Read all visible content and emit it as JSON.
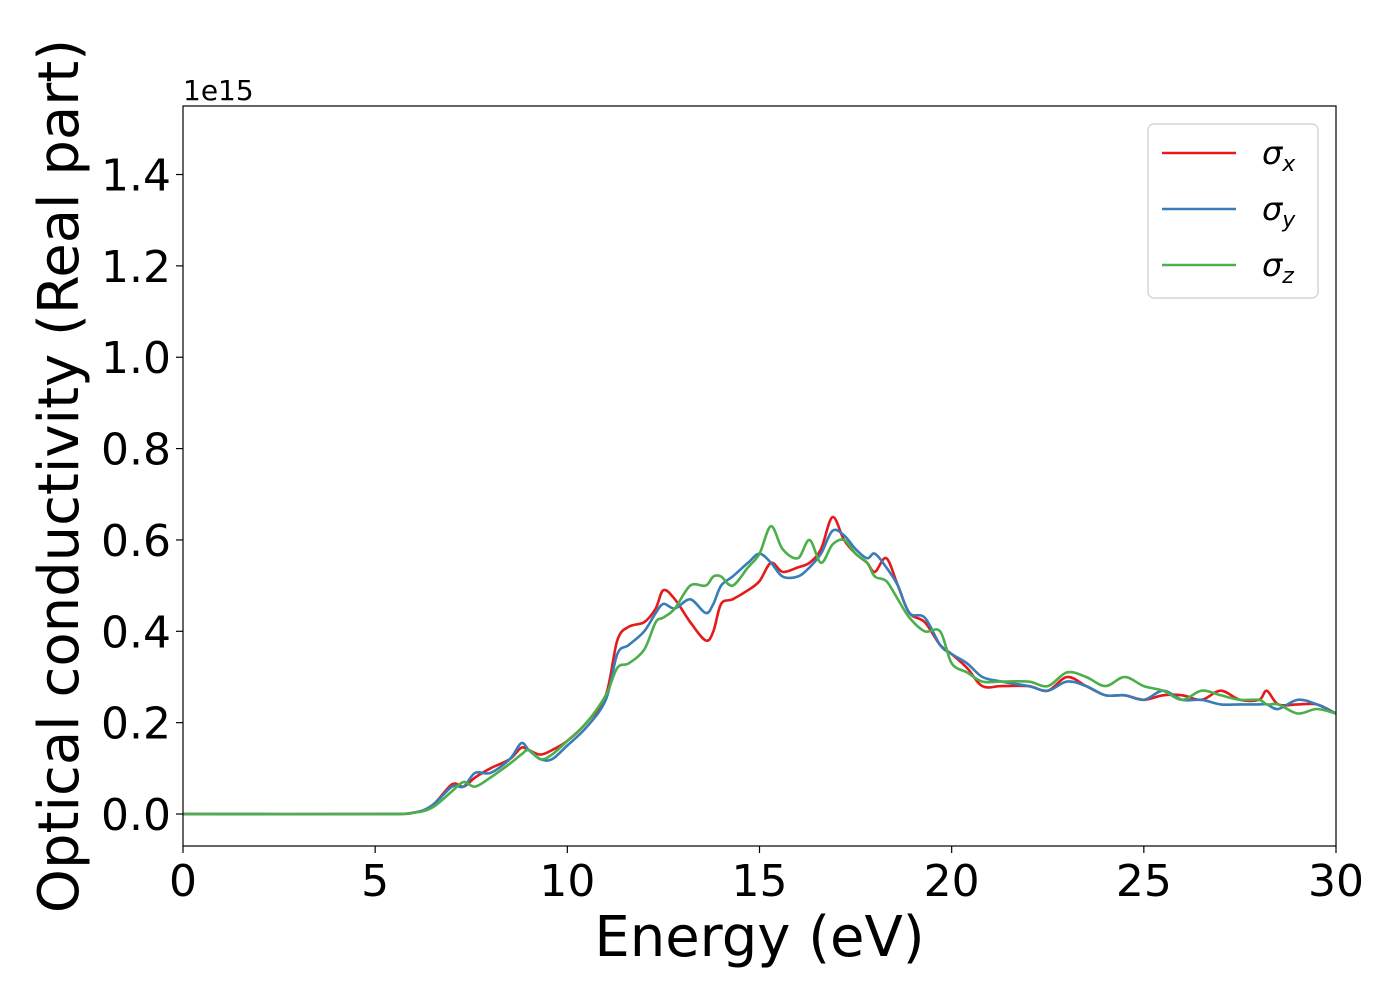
{
  "chart_data": {
    "type": "line",
    "title": "",
    "xlabel": "Energy (eV)",
    "ylabel": "Optical conductivity (Real part)",
    "y_offset_text": "1e15",
    "xlim": [
      0,
      30
    ],
    "ylim": [
      -0.07,
      1.55
    ],
    "xticks": [
      0,
      5,
      10,
      15,
      20,
      25,
      30
    ],
    "yticks": [
      0.0,
      0.2,
      0.4,
      0.6,
      0.8,
      1.0,
      1.2,
      1.4
    ],
    "grid": false,
    "legend_position": "top-right",
    "series": [
      {
        "name": "σx",
        "sym": "σ",
        "sub": "x",
        "color": "#e41a1c",
        "x": [
          0,
          5,
          6,
          6.5,
          7,
          7.3,
          7.6,
          8,
          8.5,
          8.8,
          9,
          9.3,
          9.6,
          10,
          10.5,
          11,
          11.3,
          11.6,
          12,
          12.3,
          12.5,
          12.8,
          13.2,
          13.6,
          13.8,
          14,
          14.3,
          14.7,
          15,
          15.3,
          15.6,
          16,
          16.3,
          16.6,
          16.9,
          17.2,
          17.5,
          17.8,
          18,
          18.3,
          18.6,
          18.9,
          19.3,
          19.7,
          20,
          20.4,
          20.8,
          21.3,
          22,
          22.5,
          23,
          23.5,
          24,
          24.5,
          25,
          25.5,
          26,
          26.5,
          27,
          27.5,
          28,
          28.2,
          28.5,
          29,
          29.5,
          30
        ],
        "y": [
          0,
          0,
          0.003,
          0.02,
          0.065,
          0.06,
          0.08,
          0.1,
          0.12,
          0.145,
          0.14,
          0.13,
          0.14,
          0.16,
          0.2,
          0.26,
          0.38,
          0.41,
          0.42,
          0.45,
          0.49,
          0.47,
          0.42,
          0.38,
          0.4,
          0.46,
          0.47,
          0.49,
          0.51,
          0.55,
          0.53,
          0.54,
          0.55,
          0.58,
          0.65,
          0.6,
          0.57,
          0.55,
          0.53,
          0.56,
          0.5,
          0.44,
          0.42,
          0.37,
          0.35,
          0.32,
          0.28,
          0.28,
          0.28,
          0.27,
          0.3,
          0.28,
          0.26,
          0.26,
          0.25,
          0.26,
          0.26,
          0.25,
          0.27,
          0.25,
          0.25,
          0.27,
          0.24,
          0.24,
          0.24,
          0.22
        ]
      },
      {
        "name": "σy",
        "sym": "σ",
        "sub": "y",
        "color": "#377eb8",
        "x": [
          0,
          5,
          6,
          6.5,
          7,
          7.3,
          7.6,
          8,
          8.5,
          8.8,
          9,
          9.3,
          9.6,
          10,
          10.5,
          11,
          11.3,
          11.6,
          12,
          12.3,
          12.5,
          12.8,
          13.2,
          13.6,
          13.8,
          14,
          14.3,
          14.7,
          15,
          15.3,
          15.6,
          16,
          16.3,
          16.6,
          16.9,
          17.2,
          17.5,
          17.8,
          18,
          18.3,
          18.6,
          18.9,
          19.3,
          19.7,
          20,
          20.4,
          20.8,
          21.3,
          22,
          22.5,
          23,
          23.5,
          24,
          24.5,
          25,
          25.5,
          26,
          26.5,
          27,
          27.5,
          28,
          28.2,
          28.5,
          29,
          29.5,
          30
        ],
        "y": [
          0,
          0,
          0.003,
          0.02,
          0.06,
          0.06,
          0.09,
          0.09,
          0.12,
          0.155,
          0.14,
          0.12,
          0.12,
          0.15,
          0.19,
          0.25,
          0.35,
          0.37,
          0.4,
          0.44,
          0.46,
          0.45,
          0.47,
          0.44,
          0.46,
          0.5,
          0.52,
          0.55,
          0.57,
          0.55,
          0.52,
          0.52,
          0.54,
          0.57,
          0.62,
          0.61,
          0.58,
          0.56,
          0.57,
          0.54,
          0.5,
          0.44,
          0.43,
          0.37,
          0.35,
          0.33,
          0.3,
          0.29,
          0.28,
          0.27,
          0.29,
          0.28,
          0.26,
          0.26,
          0.25,
          0.27,
          0.25,
          0.25,
          0.24,
          0.24,
          0.24,
          0.24,
          0.23,
          0.25,
          0.24,
          0.22
        ]
      },
      {
        "name": "σz",
        "sym": "σ",
        "sub": "z",
        "color": "#4daf4a",
        "x": [
          0,
          5,
          6,
          6.5,
          7,
          7.3,
          7.6,
          8,
          8.5,
          8.8,
          9,
          9.3,
          9.6,
          10,
          10.5,
          11,
          11.3,
          11.6,
          12,
          12.3,
          12.5,
          12.8,
          13.2,
          13.6,
          13.8,
          14,
          14.3,
          14.7,
          15,
          15.3,
          15.6,
          16,
          16.3,
          16.6,
          16.9,
          17.2,
          17.5,
          17.8,
          18,
          18.3,
          18.6,
          18.9,
          19.3,
          19.7,
          20,
          20.4,
          20.8,
          21.3,
          22,
          22.5,
          23,
          23.5,
          24,
          24.5,
          25,
          25.5,
          26,
          26.5,
          27,
          27.5,
          28,
          28.2,
          28.5,
          29,
          29.5,
          30
        ],
        "y": [
          0,
          0,
          0.003,
          0.015,
          0.05,
          0.07,
          0.06,
          0.08,
          0.11,
          0.13,
          0.14,
          0.12,
          0.13,
          0.16,
          0.2,
          0.26,
          0.32,
          0.33,
          0.36,
          0.42,
          0.43,
          0.45,
          0.5,
          0.5,
          0.52,
          0.52,
          0.5,
          0.54,
          0.57,
          0.63,
          0.58,
          0.56,
          0.6,
          0.55,
          0.59,
          0.6,
          0.57,
          0.55,
          0.52,
          0.51,
          0.47,
          0.43,
          0.4,
          0.4,
          0.33,
          0.31,
          0.29,
          0.29,
          0.29,
          0.28,
          0.31,
          0.3,
          0.28,
          0.3,
          0.28,
          0.27,
          0.25,
          0.27,
          0.26,
          0.25,
          0.25,
          0.24,
          0.24,
          0.22,
          0.23,
          0.22
        ]
      }
    ]
  }
}
